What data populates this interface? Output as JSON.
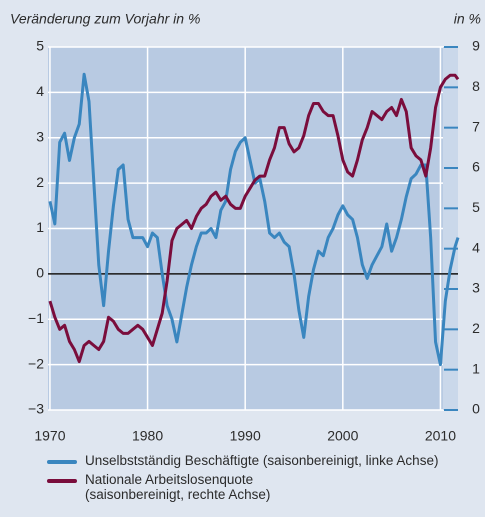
{
  "chart_data": {
    "type": "line",
    "ylabel": "Veränderung zum Vorjahr in %",
    "y2label": "in %",
    "x": [
      1970,
      1970.5,
      1971,
      1971.5,
      1972,
      1972.5,
      1973,
      1973.5,
      1974,
      1974.5,
      1975,
      1975.5,
      1976,
      1976.5,
      1977,
      1977.5,
      1978,
      1978.5,
      1979,
      1979.5,
      1980,
      1980.5,
      1981,
      1981.5,
      1982,
      1982.5,
      1983,
      1983.5,
      1984,
      1984.5,
      1985,
      1985.5,
      1986,
      1986.5,
      1987,
      1987.5,
      1988,
      1988.5,
      1989,
      1989.5,
      1990,
      1990.5,
      1991,
      1991.5,
      1992,
      1992.5,
      1993,
      1993.5,
      1994,
      1994.5,
      1995,
      1995.5,
      1996,
      1996.5,
      1997,
      1997.5,
      1998,
      1998.5,
      1999,
      1999.5,
      2000,
      2000.5,
      2001,
      2001.5,
      2002,
      2002.5,
      2003,
      2003.5,
      2004,
      2004.5,
      2005,
      2005.5,
      2006,
      2006.5,
      2007,
      2007.5,
      2008,
      2008.5,
      2009,
      2009.5,
      2010,
      2010.5,
      2011,
      2011.5,
      2011.8
    ],
    "series": [
      {
        "name": "Unselbstständig Beschäftigte (saisonbereinigt, linke Achse)",
        "color": "#3a86bf",
        "axis": "y",
        "values": [
          1.6,
          1.1,
          2.9,
          3.1,
          2.5,
          3.0,
          3.3,
          4.4,
          3.8,
          2.0,
          0.2,
          -0.7,
          0.5,
          1.5,
          2.3,
          2.4,
          1.2,
          0.8,
          0.8,
          0.8,
          0.6,
          0.9,
          0.8,
          0.0,
          -0.7,
          -1.0,
          -1.5,
          -0.9,
          -0.3,
          0.2,
          0.6,
          0.9,
          0.9,
          1.0,
          0.8,
          1.4,
          1.6,
          2.3,
          2.7,
          2.9,
          3.0,
          2.5,
          2.0,
          2.1,
          1.6,
          0.9,
          0.8,
          0.9,
          0.7,
          0.6,
          0.0,
          -0.8,
          -1.4,
          -0.5,
          0.1,
          0.5,
          0.4,
          0.8,
          1.0,
          1.3,
          1.5,
          1.3,
          1.2,
          0.8,
          0.2,
          -0.1,
          0.2,
          0.4,
          0.6,
          1.1,
          0.5,
          0.8,
          1.2,
          1.7,
          2.1,
          2.2,
          2.4,
          2.4,
          0.8,
          -1.5,
          -2.0,
          -0.6,
          0.1,
          0.6,
          0.8
        ]
      },
      {
        "name": "Nationale Arbeitslosenquote (saisonbereinigt, rechte Achse)",
        "color": "#7a0d3c",
        "axis": "y2",
        "values": [
          2.7,
          2.3,
          2.0,
          2.1,
          1.7,
          1.5,
          1.2,
          1.6,
          1.7,
          1.6,
          1.5,
          1.7,
          2.3,
          2.2,
          2.0,
          1.9,
          1.9,
          2.0,
          2.1,
          2.0,
          1.8,
          1.6,
          2.0,
          2.4,
          3.2,
          4.2,
          4.5,
          4.6,
          4.7,
          4.5,
          4.8,
          5.0,
          5.1,
          5.3,
          5.4,
          5.2,
          5.3,
          5.1,
          5.0,
          5.0,
          5.3,
          5.5,
          5.7,
          5.8,
          5.8,
          6.2,
          6.5,
          7.0,
          7.0,
          6.6,
          6.4,
          6.5,
          6.8,
          7.3,
          7.6,
          7.6,
          7.4,
          7.3,
          7.3,
          6.8,
          6.2,
          5.9,
          5.8,
          6.2,
          6.7,
          7.0,
          7.4,
          7.3,
          7.2,
          7.4,
          7.5,
          7.3,
          7.7,
          7.4,
          6.5,
          6.3,
          6.2,
          5.8,
          6.5,
          7.5,
          8.0,
          8.2,
          8.3,
          8.3,
          8.2
        ]
      }
    ],
    "xlim": [
      1969.8,
      2011.8
    ],
    "xticks": [
      1970,
      1980,
      1990,
      2000,
      2010
    ],
    "ylim": [
      -3,
      5
    ],
    "yticks": [
      {
        "value": -3,
        "label": "−3"
      },
      {
        "value": -2,
        "label": "−2"
      },
      {
        "value": -1,
        "label": "−1"
      },
      0,
      1,
      2,
      3,
      4,
      5
    ],
    "y2lim": [
      0,
      9
    ],
    "y2ticks": [
      0,
      1,
      2,
      3,
      4,
      5,
      6,
      7,
      8,
      9
    ],
    "grid": true,
    "zero_line": true
  }
}
